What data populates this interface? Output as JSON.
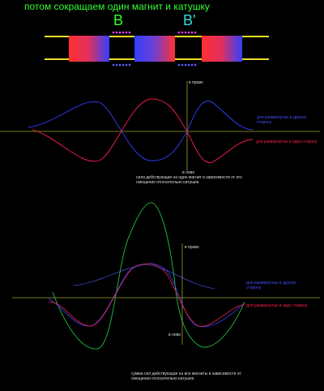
{
  "header": {
    "title": "потом сокращаем один магнит и катушку",
    "label_b": "B",
    "label_b_prime": "B'"
  },
  "graph1": {
    "up_label": "в право",
    "down_label": "в лево",
    "legend_blue": "для развернутых в другую сторону",
    "legend_red": "для развернутых в одну сторону",
    "caption": "сила действующая на один магнит в зависимости от его смещения относительно катушек."
  },
  "graph2": {
    "up_label": "в право",
    "down_label": "в лево",
    "legend_blue": "для развернутых в другую сторону",
    "legend_red": "для развернутых в одну сторону",
    "caption": "сумма сил действующая на все магниты в зависимости от смещения относительно катушек."
  }
}
